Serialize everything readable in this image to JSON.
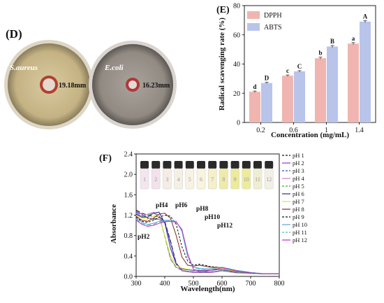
{
  "panel_d": {
    "label": "(D)",
    "plates": [
      {
        "organism": "S.aureus",
        "zone": "19.18mm",
        "plate_fill": "#c9b98a"
      },
      {
        "organism": "E.coli",
        "zone": "16.23mm",
        "plate_fill": "#9a938d"
      }
    ]
  },
  "chart_data": [
    {
      "panel": "(E)",
      "type": "bar",
      "categories": [
        "0.2",
        "0.6",
        "1",
        "1.4"
      ],
      "series": [
        {
          "name": "DPPH",
          "values": [
            21,
            32,
            44,
            54
          ],
          "errors": [
            0.5,
            0.5,
            0.7,
            0.7
          ],
          "letters": [
            "d",
            "c",
            "b",
            "a"
          ],
          "color": "#f0b5b0"
        },
        {
          "name": "ABTS",
          "values": [
            27,
            35,
            52,
            69
          ],
          "errors": [
            0.5,
            0.5,
            0.7,
            0.7
          ],
          "letters": [
            "D",
            "C",
            "B",
            "A"
          ],
          "color": "#b8c4ea"
        }
      ],
      "xlabel": "Concentration (mg/mL)",
      "ylabel": "Radical scavenging rate (%)",
      "ylim": [
        0,
        80
      ],
      "yticks": [
        0,
        20,
        40,
        60,
        80
      ],
      "legend": "top-left"
    },
    {
      "panel": "(F)",
      "type": "line",
      "xlabel": "Wavelength(nm)",
      "ylabel": "Absorbance",
      "xlim": [
        300,
        800
      ],
      "ylim": [
        0,
        2.4
      ],
      "xticks": [
        300,
        400,
        500,
        600,
        700,
        800
      ],
      "yticks": [
        0.0,
        0.4,
        0.8,
        1.2,
        1.6,
        2.0,
        2.4
      ],
      "legend": "right",
      "vial_labels": [
        "1",
        "2",
        "3",
        "4",
        "5",
        "6",
        "7",
        "8",
        "9",
        "10",
        "11",
        "12"
      ],
      "annotations": [
        "pH2",
        "pH4",
        "pH6",
        "pH8",
        "pH10",
        "pH12"
      ],
      "series": [
        {
          "name": "pH 1",
          "color": "#111111",
          "dash": "6,3",
          "x": [
            300,
            320,
            340,
            360,
            380,
            400,
            420,
            440,
            460,
            480,
            500,
            520,
            540,
            560,
            580,
            600,
            650,
            700,
            750,
            800
          ],
          "y": [
            1.3,
            1.24,
            1.2,
            1.18,
            1.17,
            1.08,
            0.7,
            0.26,
            0.12,
            0.1,
            0.09,
            0.08,
            0.08,
            0.08,
            0.09,
            0.12,
            0.08,
            0.06,
            0.05,
            0.05
          ]
        },
        {
          "name": "pH 2",
          "color": "#9b30d0",
          "dash": "",
          "x": [
            300,
            320,
            340,
            360,
            380,
            400,
            420,
            440,
            460,
            480,
            500,
            520,
            540,
            560,
            580,
            600,
            650,
            700,
            750,
            800
          ],
          "y": [
            1.28,
            1.22,
            1.15,
            1.12,
            1.12,
            1.05,
            0.66,
            0.24,
            0.11,
            0.09,
            0.08,
            0.08,
            0.08,
            0.08,
            0.09,
            0.11,
            0.07,
            0.06,
            0.05,
            0.05
          ]
        },
        {
          "name": "pH 3",
          "color": "#3050c0",
          "dash": "6,3",
          "x": [
            300,
            320,
            340,
            360,
            380,
            400,
            420,
            440,
            460,
            480,
            500,
            520,
            540,
            560,
            580,
            600,
            650,
            700,
            750,
            800
          ],
          "y": [
            1.26,
            1.2,
            1.14,
            1.13,
            1.13,
            1.07,
            0.68,
            0.25,
            0.12,
            0.1,
            0.09,
            0.09,
            0.09,
            0.09,
            0.1,
            0.12,
            0.08,
            0.06,
            0.05,
            0.05
          ]
        },
        {
          "name": "pH 4",
          "color": "#d080d0",
          "dash": "",
          "x": [
            300,
            320,
            340,
            360,
            380,
            400,
            420,
            440,
            460,
            480,
            500,
            520,
            540,
            560,
            580,
            600,
            650,
            700,
            750,
            800
          ],
          "y": [
            1.24,
            1.18,
            1.22,
            1.26,
            1.2,
            0.8,
            0.35,
            0.18,
            0.12,
            0.1,
            0.09,
            0.09,
            0.09,
            0.09,
            0.1,
            0.11,
            0.08,
            0.06,
            0.05,
            0.05
          ]
        },
        {
          "name": "pH 5",
          "color": "#40a040",
          "dash": "6,3",
          "x": [
            300,
            320,
            340,
            360,
            380,
            400,
            420,
            440,
            460,
            480,
            500,
            520,
            540,
            560,
            580,
            600,
            650,
            700,
            750,
            800
          ],
          "y": [
            1.22,
            1.17,
            1.2,
            1.24,
            1.18,
            0.78,
            0.34,
            0.17,
            0.12,
            0.1,
            0.09,
            0.09,
            0.09,
            0.09,
            0.1,
            0.11,
            0.08,
            0.06,
            0.05,
            0.05
          ]
        },
        {
          "name": "pH 6",
          "color": "#2a2a9a",
          "dash": "",
          "x": [
            300,
            320,
            340,
            360,
            380,
            400,
            420,
            440,
            460,
            480,
            500,
            520,
            540,
            560,
            580,
            600,
            650,
            700,
            750,
            800
          ],
          "y": [
            1.22,
            1.16,
            1.16,
            1.24,
            1.26,
            1.05,
            0.55,
            0.24,
            0.15,
            0.13,
            0.12,
            0.12,
            0.12,
            0.12,
            0.13,
            0.14,
            0.09,
            0.07,
            0.05,
            0.05
          ]
        },
        {
          "name": "pH 7",
          "color": "#e8e030",
          "dash": "",
          "x": [
            300,
            320,
            340,
            360,
            380,
            400,
            420,
            440,
            460,
            480,
            500,
            520,
            540,
            560,
            580,
            600,
            650,
            700,
            750,
            800
          ],
          "y": [
            1.2,
            1.14,
            1.12,
            1.18,
            1.16,
            0.8,
            0.4,
            0.22,
            0.16,
            0.14,
            0.13,
            0.13,
            0.13,
            0.14,
            0.15,
            0.15,
            0.1,
            0.07,
            0.05,
            0.05
          ]
        },
        {
          "name": "pH 8",
          "color": "#7a2a20",
          "dash": "",
          "x": [
            300,
            320,
            340,
            360,
            380,
            400,
            420,
            440,
            460,
            480,
            500,
            520,
            540,
            560,
            580,
            600,
            650,
            700,
            750,
            800
          ],
          "y": [
            1.18,
            1.1,
            1.08,
            1.14,
            1.22,
            1.24,
            1.14,
            0.8,
            0.38,
            0.22,
            0.2,
            0.22,
            0.2,
            0.18,
            0.18,
            0.17,
            0.11,
            0.07,
            0.05,
            0.05
          ]
        },
        {
          "name": "pH 9",
          "color": "#111111",
          "dash": "3,2",
          "x": [
            300,
            320,
            340,
            360,
            380,
            400,
            420,
            440,
            460,
            480,
            500,
            520,
            540,
            560,
            580,
            600,
            650,
            700,
            750,
            800
          ],
          "y": [
            1.16,
            1.08,
            1.06,
            1.1,
            1.16,
            1.2,
            1.18,
            1.02,
            0.58,
            0.3,
            0.22,
            0.24,
            0.22,
            0.19,
            0.18,
            0.17,
            0.11,
            0.07,
            0.05,
            0.05
          ]
        },
        {
          "name": "pH 10",
          "color": "#5fa0e0",
          "dash": "",
          "x": [
            300,
            320,
            340,
            360,
            380,
            400,
            420,
            440,
            460,
            480,
            500,
            520,
            540,
            560,
            580,
            600,
            650,
            700,
            750,
            800
          ],
          "y": [
            1.14,
            1.06,
            1.02,
            1.04,
            1.08,
            1.1,
            1.1,
            1.08,
            0.88,
            0.38,
            0.18,
            0.16,
            0.15,
            0.15,
            0.17,
            0.18,
            0.12,
            0.08,
            0.05,
            0.05
          ]
        },
        {
          "name": "pH 11",
          "color": "#40c0c0",
          "dash": "6,3",
          "x": [
            300,
            320,
            340,
            360,
            380,
            400,
            420,
            440,
            460,
            480,
            500,
            520,
            540,
            560,
            580,
            600,
            650,
            700,
            750,
            800
          ],
          "y": [
            1.12,
            1.04,
            1.0,
            1.02,
            1.06,
            1.08,
            1.09,
            1.07,
            0.9,
            0.4,
            0.17,
            0.15,
            0.14,
            0.15,
            0.17,
            0.18,
            0.12,
            0.08,
            0.05,
            0.05
          ]
        },
        {
          "name": "pH 12",
          "color": "#c030c0",
          "dash": "",
          "x": [
            300,
            320,
            340,
            360,
            380,
            400,
            420,
            440,
            460,
            480,
            500,
            520,
            540,
            560,
            580,
            600,
            650,
            700,
            750,
            800
          ],
          "y": [
            1.1,
            1.02,
            0.98,
            1.0,
            1.04,
            1.07,
            1.08,
            1.06,
            0.92,
            0.45,
            0.14,
            0.1,
            0.1,
            0.12,
            0.15,
            0.17,
            0.11,
            0.07,
            0.05,
            0.05
          ]
        }
      ]
    }
  ]
}
